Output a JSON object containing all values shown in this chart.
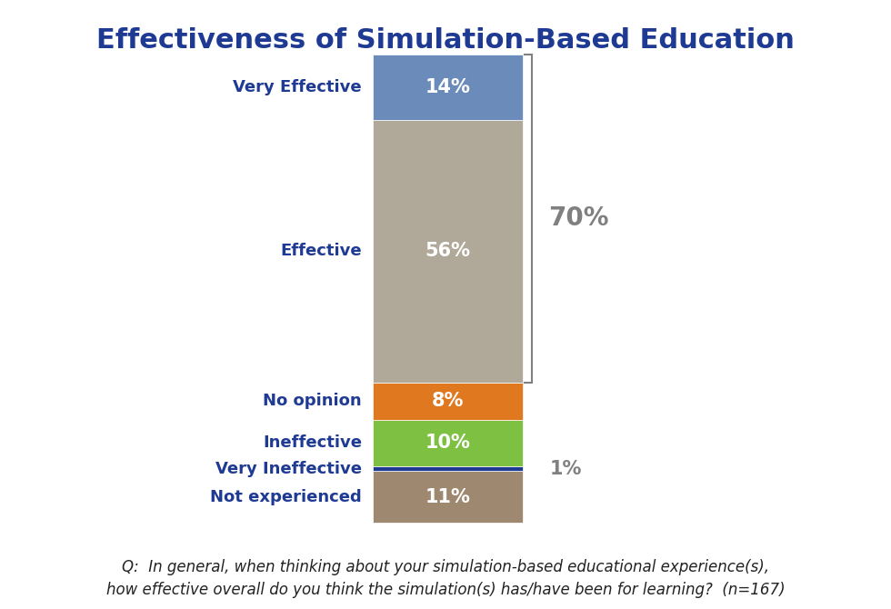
{
  "title": "Effectiveness of Simulation-Based Education",
  "title_color": "#1f3a93",
  "title_fontsize": 22,
  "categories": [
    "Very Effective",
    "Effective",
    "No opinion",
    "Ineffective",
    "Very Ineffective",
    "Not experienced"
  ],
  "values": [
    14,
    56,
    8,
    10,
    1,
    11
  ],
  "colors": [
    "#6b8cba",
    "#b0a898",
    "#e07820",
    "#7dc042",
    "#1f3a93",
    "#9e8870"
  ],
  "bar_label_color": "white",
  "bar_label_fontsize": 15,
  "category_label_color": "#1f3a93",
  "category_label_fontsize": 13,
  "bracket_label": "70%",
  "bracket_color": "#808080",
  "bracket_label_fontsize": 20,
  "footnote_line1": "Q:  In general, when thinking about your simulation-based educational experience(s),",
  "footnote_line2": "how effective overall do you think the simulation(s) has/have been for learning?  (n=167)",
  "footnote_fontsize": 12,
  "footnote_color": "#222222",
  "background_color": "#ffffff"
}
